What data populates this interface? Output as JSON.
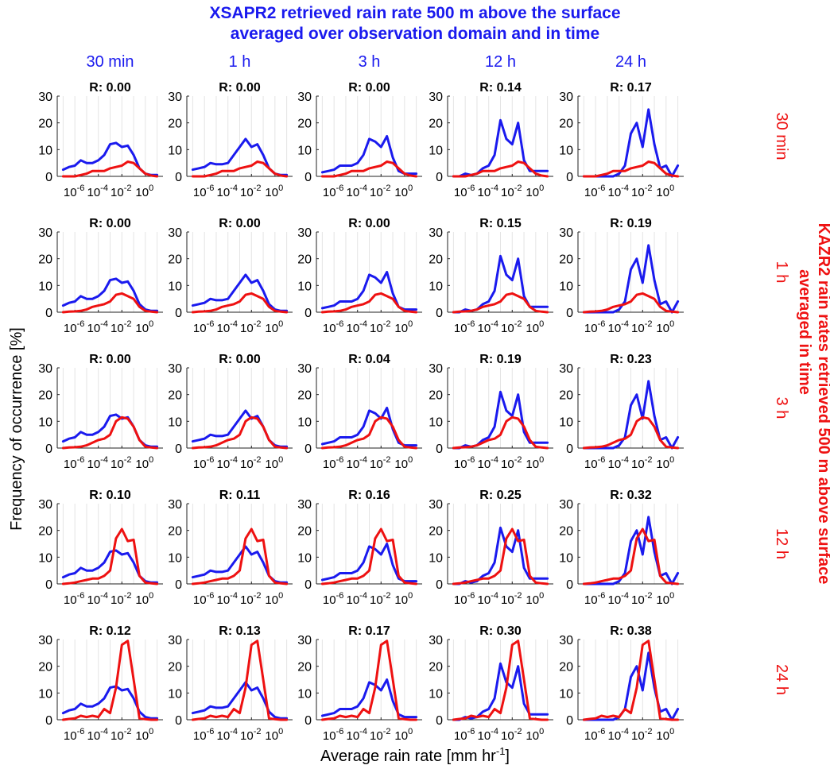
{
  "figure": {
    "title_line1": "XSAPR2 retrieved rain rate 500 m above the surface",
    "title_line2": "averaged over observation domain and in time",
    "xlabel": "Average rain rate [mm hr",
    "xlabel_sup": "-1",
    "xlabel_end": "]",
    "ylabel": "Frequency of occurrence [%]",
    "right_title_line1": "KAZR2 rain rates retrieved 500 m above surface",
    "right_title_line2": "averaged in time",
    "colors": {
      "blue": "#1a1aee",
      "red": "#ee1111",
      "text": "#000000"
    }
  },
  "chart_data": {
    "type": "line",
    "layout": "grid-5x5",
    "col_labels": [
      "30 min",
      "1 h",
      "3 h",
      "12 h",
      "24 h"
    ],
    "row_labels": [
      "30 min",
      "1 h",
      "3 h",
      "12 h",
      "24 h"
    ],
    "x_scale": "log",
    "x_range": [
      3.16e-08,
      31.6
    ],
    "x_tick_base": "10",
    "x_tick_exponents": [
      "-6",
      "-4",
      "-2",
      "0"
    ],
    "x": [
      3.16e-08,
      1e-07,
      3.16e-07,
      1e-06,
      3.16e-06,
      1e-05,
      3.16e-05,
      0.0001,
      0.000316,
      0.001,
      0.00316,
      0.01,
      0.0316,
      0.1,
      0.316,
      1,
      3.16,
      10,
      31.6
    ],
    "ylim": [
      0,
      30
    ],
    "yticks": [
      0,
      10,
      20,
      30
    ],
    "grid": "vertical",
    "r_label_prefix": "R: ",
    "r_values": [
      [
        "0.00",
        "0.00",
        "0.00",
        "0.14",
        "0.17"
      ],
      [
        "0.00",
        "0.00",
        "0.00",
        "0.15",
        "0.19"
      ],
      [
        "0.00",
        "0.00",
        "0.04",
        "0.19",
        "0.23"
      ],
      [
        "0.10",
        "0.11",
        "0.16",
        "0.25",
        "0.32"
      ],
      [
        "0.12",
        "0.13",
        "0.17",
        "0.30",
        "0.38"
      ]
    ],
    "blue_by_col": [
      [
        2.5,
        3.5,
        4,
        6,
        5,
        5,
        6,
        8,
        12,
        12.5,
        11,
        11.5,
        8,
        3,
        1,
        0.5,
        0.5
      ],
      [
        2.5,
        3,
        3.5,
        5,
        4.5,
        4.5,
        5,
        8,
        11,
        14,
        11,
        12,
        8,
        3,
        1,
        0.5,
        0.5
      ],
      [
        1.5,
        2,
        2.5,
        4,
        4,
        4,
        5,
        8,
        14,
        13,
        11,
        15,
        7,
        2,
        1,
        1,
        1
      ],
      [
        0,
        0,
        1,
        0.5,
        1,
        3,
        4,
        8,
        21,
        14,
        12,
        20,
        6,
        2,
        2,
        2,
        2
      ],
      [
        0,
        0,
        0,
        0,
        0,
        0,
        1,
        4,
        16,
        20,
        11,
        25,
        12,
        3,
        4,
        0,
        4
      ]
    ],
    "red_by_row": [
      [
        0,
        0,
        0,
        0.5,
        1,
        2,
        2,
        2,
        3,
        3.5,
        4,
        5.5,
        5,
        3,
        1,
        0.3,
        0
      ],
      [
        0,
        0.2,
        0.3,
        0.5,
        1,
        2,
        2.5,
        3,
        4,
        6.5,
        7,
        6,
        5,
        2,
        0.5,
        0.2,
        0
      ],
      [
        0,
        0.2,
        0.3,
        0.5,
        1,
        2,
        3,
        3.5,
        5,
        10,
        11.5,
        11,
        8,
        3,
        0.5,
        0.2,
        0
      ],
      [
        0,
        0.2,
        0.5,
        1,
        1.5,
        2,
        2,
        3,
        5,
        17,
        20.5,
        16,
        16.5,
        3,
        0.5,
        0.2,
        0
      ],
      [
        0,
        0.3,
        0.5,
        1.5,
        1,
        1.5,
        1,
        4,
        2.5,
        12,
        28,
        29.5,
        15,
        0.5,
        0.2,
        0,
        0
      ]
    ],
    "x_points_index_start": 1
  }
}
